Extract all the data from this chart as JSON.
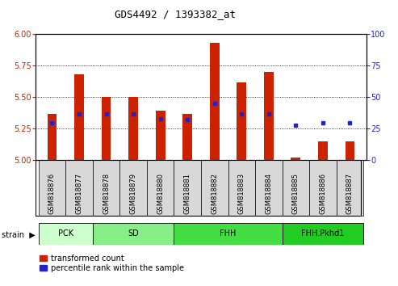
{
  "title": "GDS4492 / 1393382_at",
  "samples": [
    "GSM818876",
    "GSM818877",
    "GSM818878",
    "GSM818879",
    "GSM818880",
    "GSM818881",
    "GSM818882",
    "GSM818883",
    "GSM818884",
    "GSM818885",
    "GSM818886",
    "GSM818887"
  ],
  "transformed_count": [
    5.37,
    5.68,
    5.5,
    5.5,
    5.39,
    5.37,
    5.93,
    5.62,
    5.7,
    5.02,
    5.15,
    5.15
  ],
  "percentile_rank": [
    30,
    37,
    37,
    37,
    33,
    32,
    45,
    37,
    37,
    28,
    30,
    30
  ],
  "groups": [
    {
      "label": "PCK",
      "start": 0,
      "end": 2,
      "color": "#ccffcc"
    },
    {
      "label": "SD",
      "start": 2,
      "end": 5,
      "color": "#88ee88"
    },
    {
      "label": "FHH",
      "start": 5,
      "end": 9,
      "color": "#44dd44"
    },
    {
      "label": "FHH.Pkhd1",
      "start": 9,
      "end": 12,
      "color": "#22cc22"
    }
  ],
  "ylim_left": [
    5.0,
    6.0
  ],
  "ylim_right": [
    0,
    100
  ],
  "yticks_left": [
    5.0,
    5.25,
    5.5,
    5.75,
    6.0
  ],
  "yticks_right": [
    0,
    25,
    50,
    75,
    100
  ],
  "bar_color": "#cc2200",
  "dot_color": "#2222cc",
  "bar_width": 0.35,
  "background_color": "#ffffff",
  "tick_label_color_left": "#cc2200",
  "tick_label_color_right": "#2222cc",
  "legend_items": [
    "transformed count",
    "percentile rank within the sample"
  ],
  "title_fontsize": 9,
  "tick_fontsize": 7,
  "label_fontsize": 6,
  "group_fontsize": 7
}
